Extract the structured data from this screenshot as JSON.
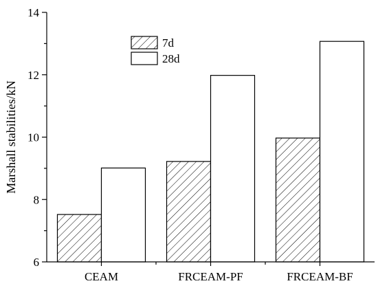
{
  "chart_data": {
    "type": "bar",
    "categories": [
      "CEAM",
      "FRCEAM-PF",
      "FRCEAM-BF"
    ],
    "series": [
      {
        "name": "7d",
        "values": [
          7.52,
          9.22,
          9.97
        ],
        "pattern": "diagonal-hatch"
      },
      {
        "name": "28d",
        "values": [
          9.01,
          11.98,
          13.07
        ],
        "pattern": "solid-white"
      }
    ],
    "xlabel": "",
    "ylabel": "Marshall stabilities/kN",
    "ylim": [
      6,
      14
    ],
    "yticks": [
      6,
      8,
      10,
      12,
      14
    ],
    "grid": false,
    "legend_position": "top-center",
    "colors": {
      "stroke": "#000000",
      "fill": "#ffffff"
    }
  }
}
